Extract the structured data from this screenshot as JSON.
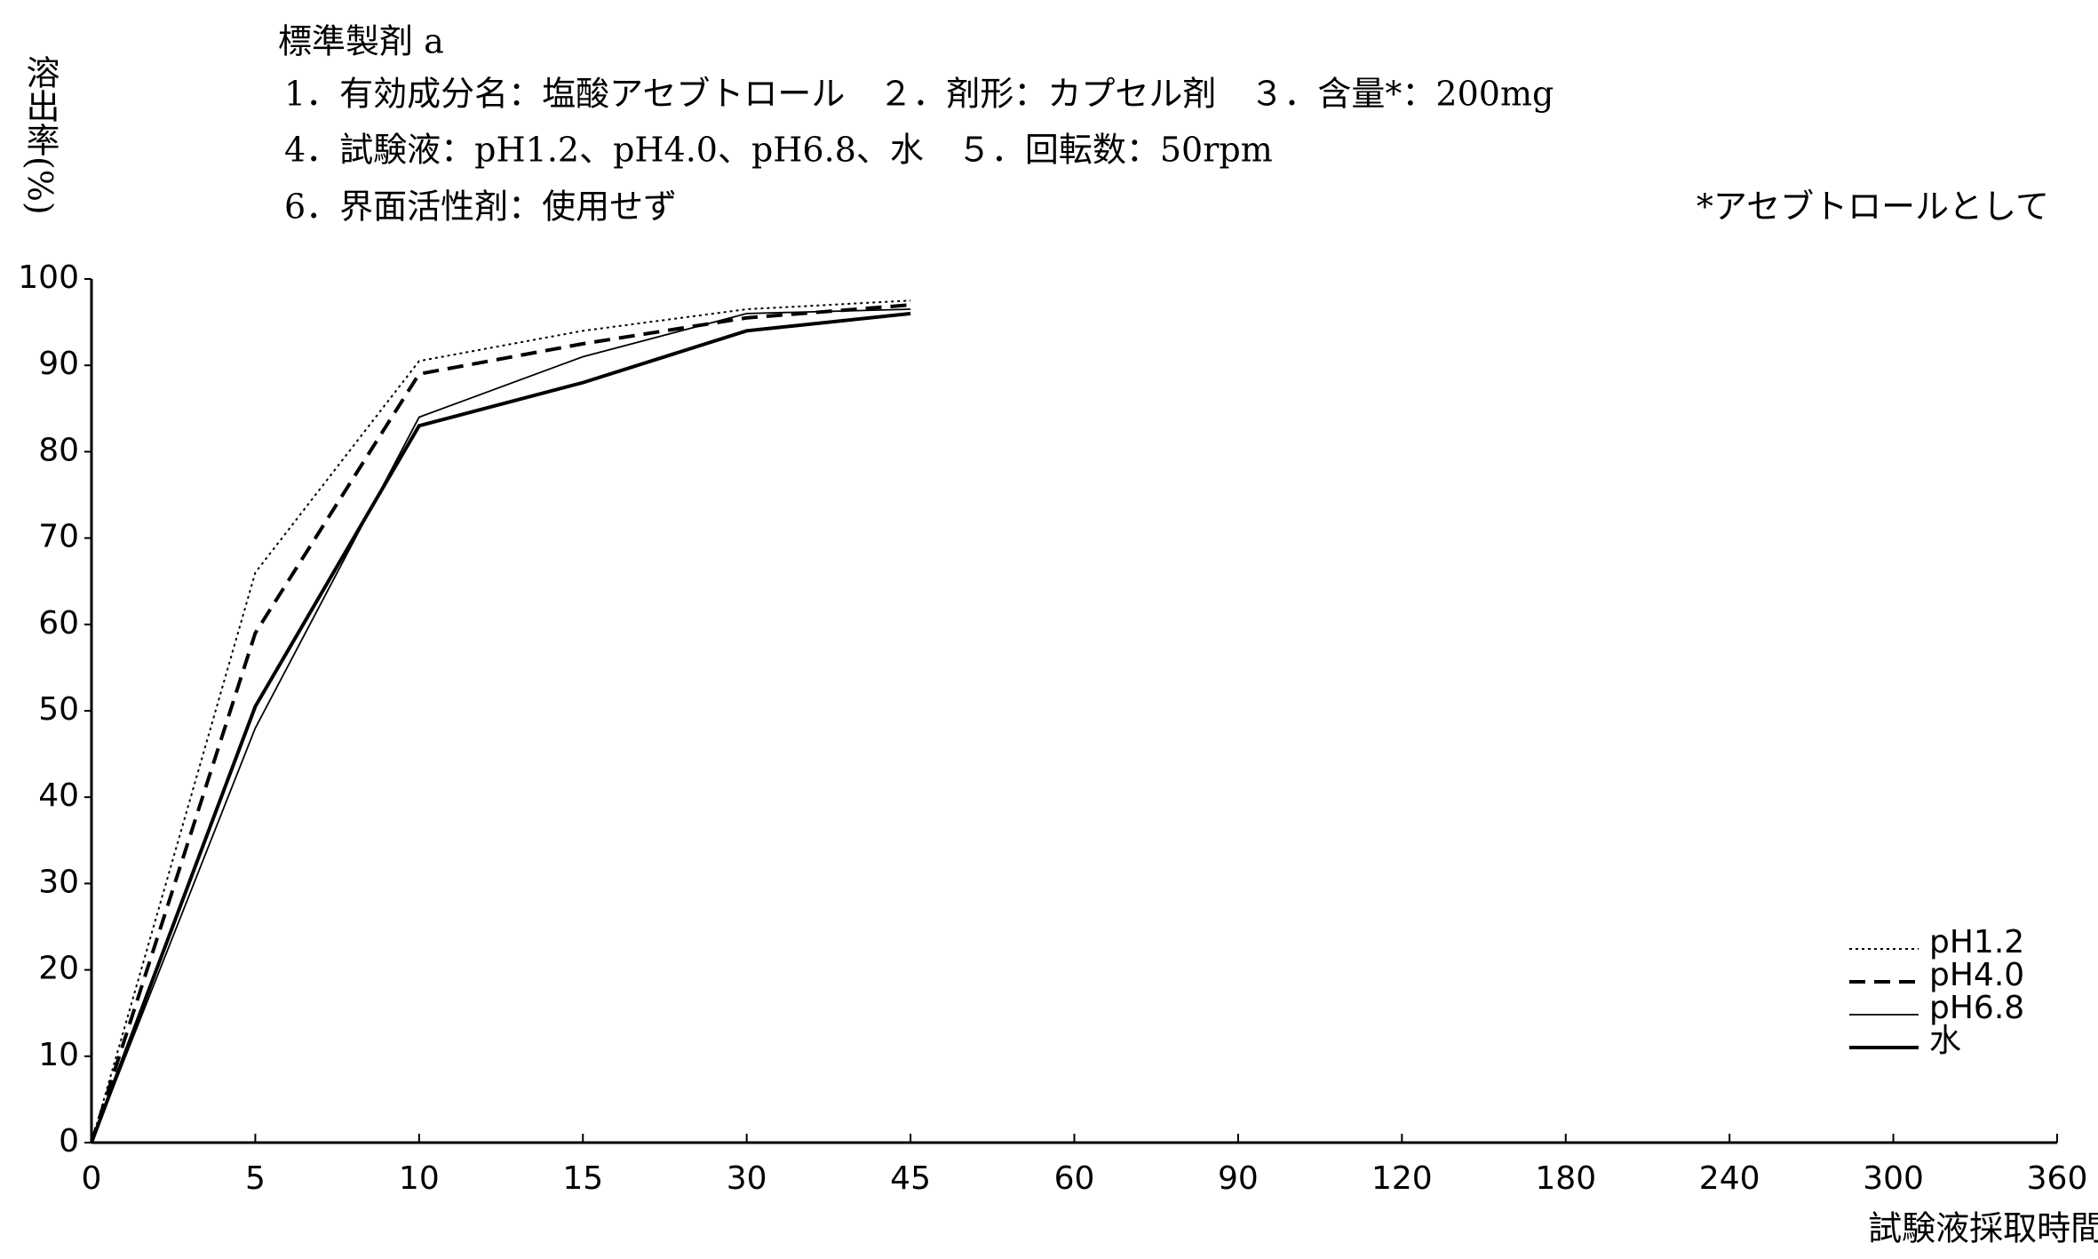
{
  "chart_data": {
    "type": "line",
    "title": "標準製剤 a",
    "subtitle_lines": [
      "1．有効成分名：塩酸アセブトロール　２．剤形：カプセル剤　３．含量*：200mg",
      "4．試験液：pH1.2、pH4.0、pH6.8、水　５．回転数：50rpm",
      "6．界面活性剤：使用せず"
    ],
    "note": "*アセブトロールとして",
    "y_label": "溶出率(%)",
    "x_label": "試験液採取時間(分)",
    "categories": [
      "0",
      "5",
      "10",
      "15",
      "30",
      "45",
      "60",
      "90",
      "120",
      "180",
      "240",
      "300",
      "360"
    ],
    "series": [
      {
        "name": "pH1.2",
        "color": "#000000",
        "style": "dotted",
        "values": [
          0,
          66,
          90.5,
          94,
          96.5,
          97.5,
          null,
          null,
          null,
          null,
          null,
          null,
          null
        ]
      },
      {
        "name": "pH4.0",
        "color": "#000000",
        "style": "dashed",
        "values": [
          0,
          59,
          89,
          92.5,
          95.5,
          97,
          null,
          null,
          null,
          null,
          null,
          null,
          null
        ]
      },
      {
        "name": "pH6.8",
        "color": "#000000",
        "style": "thin",
        "values": [
          0,
          48,
          84,
          91,
          96,
          96.5,
          null,
          null,
          null,
          null,
          null,
          null,
          null
        ]
      },
      {
        "name": "水",
        "color": "#000000",
        "style": "solid",
        "values": [
          0,
          50.5,
          83,
          88,
          94,
          96,
          null,
          null,
          null,
          null,
          null,
          null,
          null
        ]
      }
    ],
    "ylim": [
      0,
      100
    ],
    "yticks": [
      0,
      10,
      20,
      30,
      40,
      50,
      60,
      70,
      80,
      90,
      100
    ],
    "grid": false,
    "legend": "lower right"
  }
}
